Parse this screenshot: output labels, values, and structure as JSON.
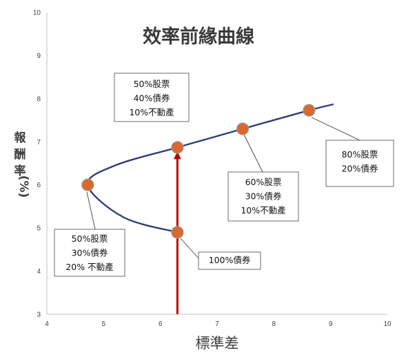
{
  "chart_data": {
    "type": "scatter",
    "title": "效率前緣曲線",
    "xlabel": "標準差",
    "ylabel": [
      "報",
      "酬",
      "率",
      "(%)"
    ],
    "xlim": [
      4,
      10
    ],
    "ylim": [
      3,
      10
    ],
    "xticks": [
      "4",
      "5",
      "6",
      "7",
      "8",
      "9",
      "10"
    ],
    "yticks": [
      "3",
      "4",
      "5",
      "6",
      "7",
      "8",
      "9",
      "10"
    ],
    "grid": false,
    "curve": [
      {
        "x": 6.3,
        "y": 4.9
      },
      {
        "x": 5.35,
        "y": 5.25
      },
      {
        "x": 4.72,
        "y": 6.0
      },
      {
        "x": 5.2,
        "y": 6.45
      },
      {
        "x": 6.3,
        "y": 6.87
      },
      {
        "x": 7.45,
        "y": 7.3
      },
      {
        "x": 8.62,
        "y": 7.73
      },
      {
        "x": 9.05,
        "y": 7.87
      }
    ],
    "points": [
      {
        "x": 4.72,
        "y": 6.0
      },
      {
        "x": 6.3,
        "y": 4.9
      },
      {
        "x": 6.3,
        "y": 6.87
      },
      {
        "x": 7.45,
        "y": 7.3
      },
      {
        "x": 8.62,
        "y": 7.73
      }
    ],
    "arrow": {
      "x": 6.3,
      "from_y": 3,
      "to_y": 6.87
    },
    "annotations": [
      {
        "lines": [
          "50%股票",
          "40%債券",
          "10%不動產"
        ],
        "x": 6.3,
        "y": 6.87
      },
      {
        "lines": [
          "50%股票",
          "30%債券",
          "20% 不動產"
        ],
        "x": 4.72,
        "y": 6.0
      },
      {
        "lines": [
          "100%債券"
        ],
        "x": 6.3,
        "y": 4.9
      },
      {
        "lines": [
          "60%股票",
          "30%債券",
          "10%不動產"
        ],
        "x": 7.45,
        "y": 7.3
      },
      {
        "lines": [
          "80%股票",
          "20%債券"
        ],
        "x": 8.62,
        "y": 7.73
      }
    ],
    "colors": {
      "curve": "#2f3e78",
      "point_fill": "#d9692d",
      "point_stroke": "#9a9a9a",
      "arrow": "#c00000",
      "axis": "#bfbfbf",
      "callout_border": "#595959"
    }
  }
}
